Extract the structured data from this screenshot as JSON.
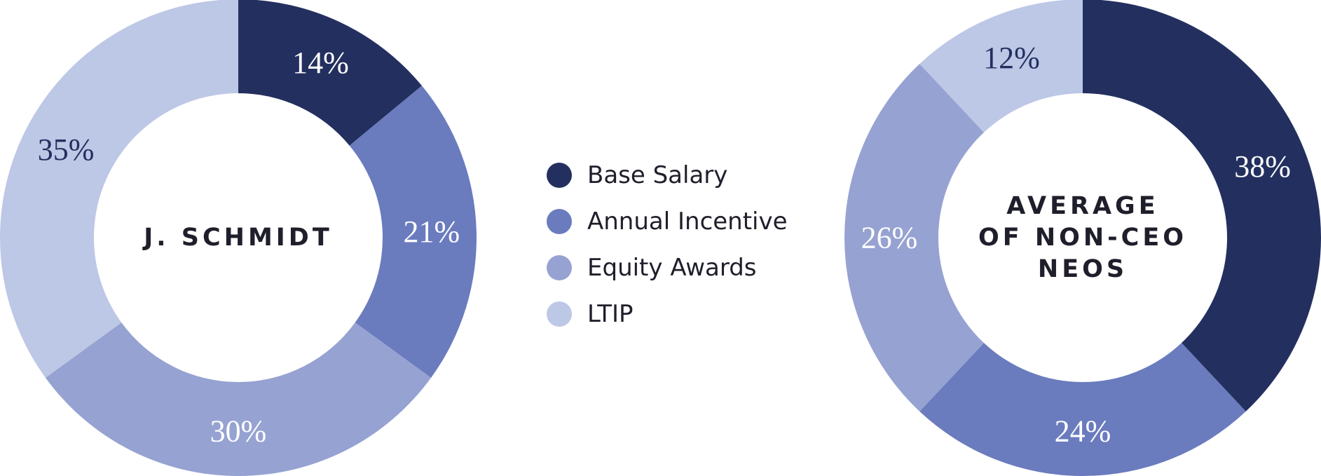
{
  "colors": {
    "base_salary": "#23305f",
    "annual_incentive": "#6a7bbe",
    "equity_awards": "#96a2d1",
    "ltip": "#bdc7e6"
  },
  "legend": [
    {
      "label": "Base Salary",
      "color": "#23305f"
    },
    {
      "label": "Annual Incentive",
      "color": "#6a7bbe"
    },
    {
      "label": "Equity Awards",
      "color": "#96a2d1"
    },
    {
      "label": "LTIP",
      "color": "#bdc7e6"
    }
  ],
  "chart_data": [
    {
      "type": "pie",
      "variant": "donut",
      "title_lines": [
        "J. SCHMIDT"
      ],
      "categories": [
        "Base Salary",
        "Annual Incentive",
        "Equity Awards",
        "LTIP"
      ],
      "values": [
        14,
        21,
        30,
        35
      ],
      "labels": [
        "14%",
        "21%",
        "30%",
        "35%"
      ],
      "colors": [
        "#23305f",
        "#6a7bbe",
        "#96a2d1",
        "#bdc7e6"
      ],
      "label_colors": [
        "#ffffff",
        "#ffffff",
        "#ffffff",
        "#23305f"
      ]
    },
    {
      "type": "pie",
      "variant": "donut",
      "title_lines": [
        "AVERAGE",
        "OF NON-CEO",
        "NEOS"
      ],
      "categories": [
        "Base Salary",
        "Annual Incentive",
        "Equity Awards",
        "LTIP"
      ],
      "values": [
        38,
        24,
        26,
        12
      ],
      "labels": [
        "38%",
        "24%",
        "26%",
        "12%"
      ],
      "colors": [
        "#23305f",
        "#6a7bbe",
        "#96a2d1",
        "#bdc7e6"
      ],
      "label_colors": [
        "#ffffff",
        "#ffffff",
        "#ffffff",
        "#23305f"
      ]
    }
  ]
}
